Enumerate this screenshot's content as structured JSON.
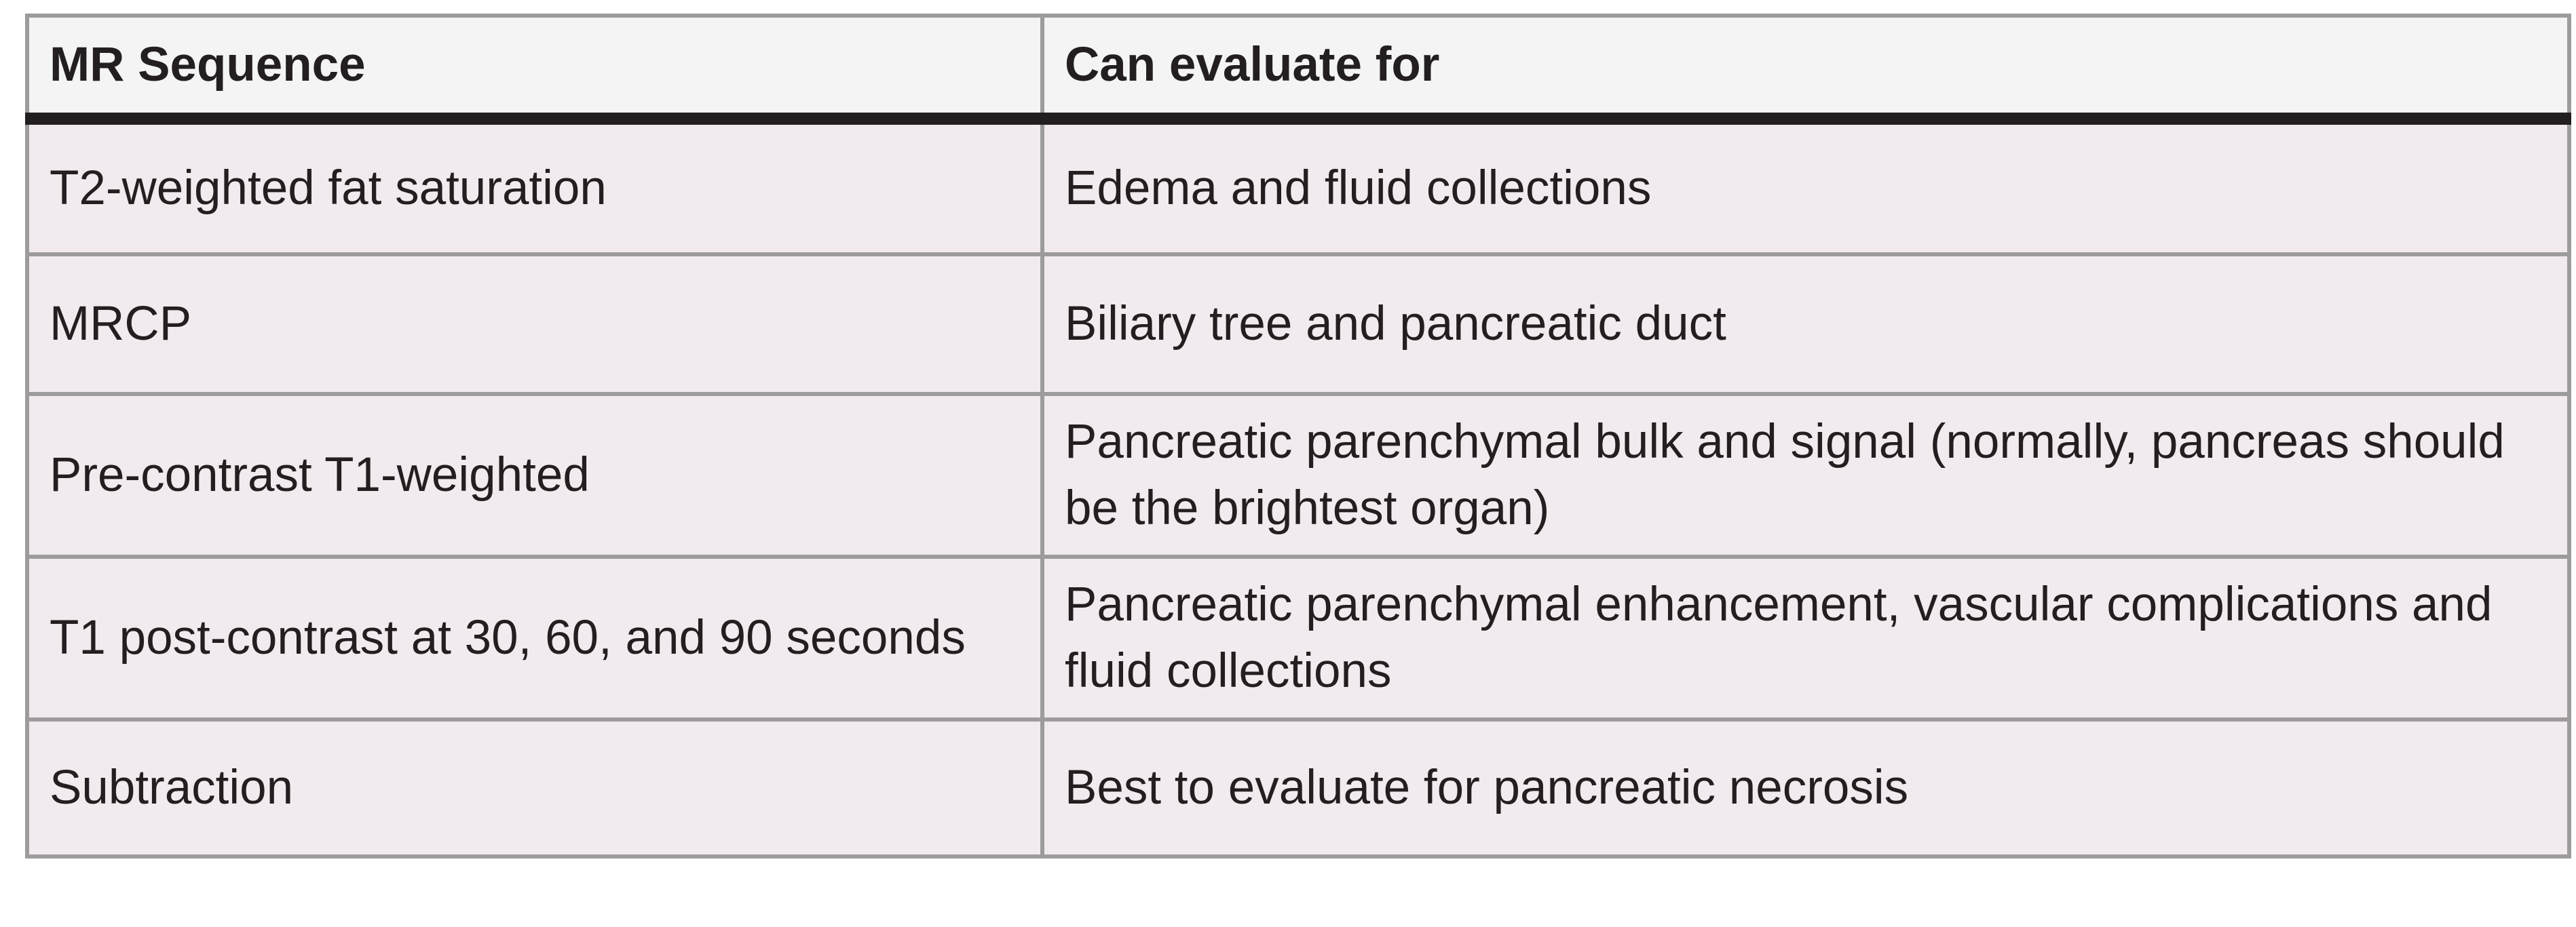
{
  "table": {
    "headers": [
      "MR Sequence",
      "Can evaluate for"
    ],
    "rows": [
      [
        "T2-weighted fat saturation",
        "Edema and fluid collections"
      ],
      [
        "MRCP",
        "Biliary tree and pancreatic duct"
      ],
      [
        "Pre-contrast T1-weighted",
        "Pancreatic parenchymal bulk and signal (normally, pancreas should be the brightest organ)"
      ],
      [
        "T1 post-contrast at 30, 60, and 90 seconds",
        "Pancreatic parenchymal enhancement, vascular complications and fluid collections"
      ],
      [
        "Subtraction",
        "Best to evaluate for pancreatic necrosis"
      ]
    ]
  },
  "colors": {
    "header_bg": "#f4f4f4",
    "row_bg": "#f1eaee",
    "grid": "#9d9b9c",
    "header_rule": "#231f20",
    "text": "#231f20"
  }
}
